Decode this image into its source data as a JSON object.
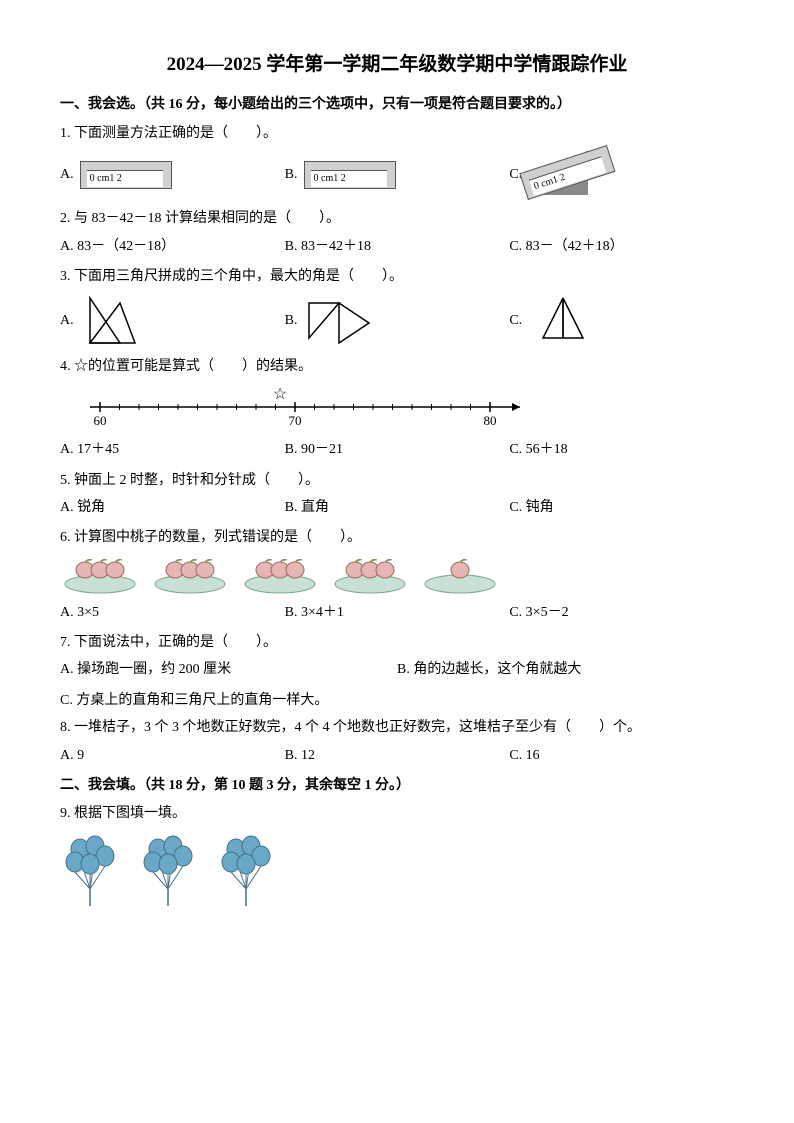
{
  "title": "2024—2025 学年第一学期二年级数学期中学情跟踪作业",
  "section1": {
    "header": "一、我会选。（共 16 分，每小题给出的三个选项中，只有一项是符合题目要求的。）",
    "q1": {
      "text": "1. 下面测量方法正确的是（　　）。",
      "optA": "A.",
      "optB": "B.",
      "optC": "C.",
      "ruler_label": "0 cm1    2",
      "ruler_bg": "#d6d6d6",
      "ruler_border": "#555555"
    },
    "q2": {
      "text": "2. 与 83－42－18 计算结果相同的是（　　）。",
      "a": "A. 83－（42－18）",
      "b": "B. 83－42＋18",
      "c": "C. 83－（42＋18）"
    },
    "q3": {
      "text": "3. 下面用三角尺拼成的三个角中，最大的角是（　　）。",
      "optA": "A.",
      "optB": "B.",
      "optC": "C.",
      "stroke": "#000000",
      "fill": "#ffffff"
    },
    "q4": {
      "text": "4. ☆的位置可能是算式（　　）的结果。",
      "a": "A. 17＋45",
      "b": "B. 90－21",
      "c": "C. 56＋18",
      "ticks": [
        "60",
        "70",
        "80"
      ],
      "star_pos": 0.45,
      "line_color": "#000000"
    },
    "q5": {
      "text": "5. 钟面上 2 时整，时针和分针成（　　）。",
      "a": "A. 锐角",
      "b": "B. 直角",
      "c": "C. 钝角"
    },
    "q6": {
      "text": "6. 计算图中桃子的数量，列式错误的是（　　）。",
      "a": "A. 3×5",
      "b": "B. 3×4＋1",
      "c": "C. 3×5－2",
      "plate_counts": [
        3,
        3,
        3,
        3,
        1
      ],
      "peach_fill": "#e8b5b5",
      "peach_stroke": "#9a6b5f",
      "leaf_fill": "#6aa05a",
      "plate_fill": "#c9e0d4",
      "plate_stroke": "#7aa88c"
    },
    "q7": {
      "text": "7. 下面说法中，正确的是（　　）。",
      "a": "A. 操场跑一圈，约 200 厘米",
      "b": "B. 角的边越长，这个角就越大",
      "c": "C. 方桌上的直角和三角尺上的直角一样大。"
    },
    "q8": {
      "text": "8. 一堆桔子，3 个 3 个地数正好数完，4 个 4 个地数也正好数完，这堆桔子至少有（　　）个。",
      "a": "A. 9",
      "b": "B. 12",
      "c": "C. 16"
    }
  },
  "section2": {
    "header": "二、我会填。（共 18 分，第 10 题 3 分，其余每空 1 分。）",
    "q9": {
      "text": "9. 根据下图填一填。",
      "clusters": 3,
      "balloons_per": 5,
      "balloon_fill": "#6aa8c7",
      "balloon_stroke": "#476f86",
      "stick_color": "#476f86"
    }
  }
}
